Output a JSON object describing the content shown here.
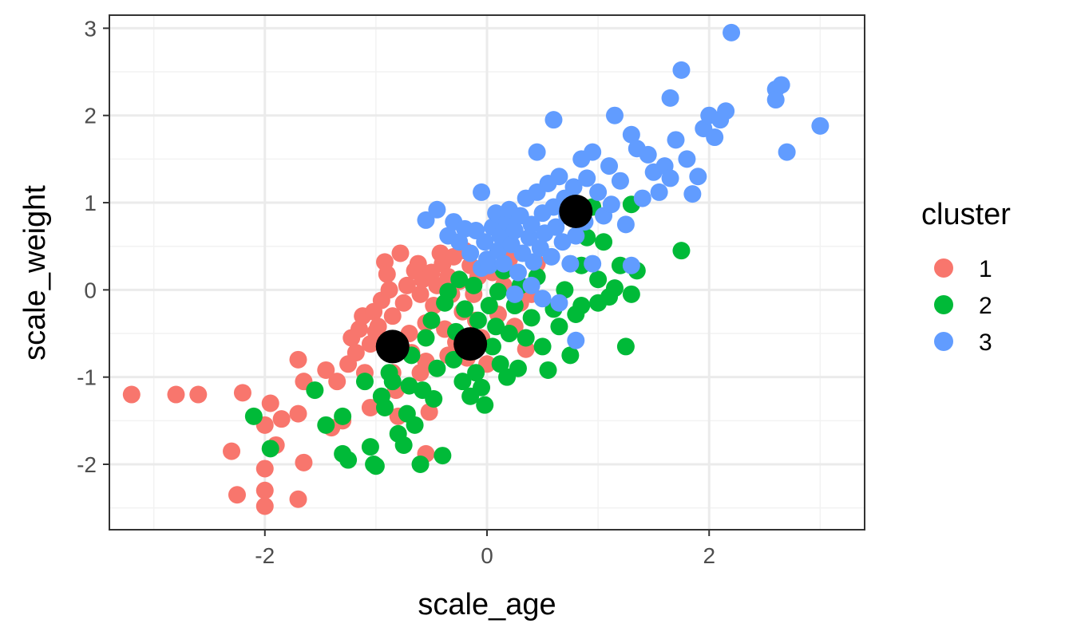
{
  "chart_data": {
    "type": "scatter",
    "xlabel": "scale_age",
    "ylabel": "scale_weight",
    "xlim": [
      -3.4,
      3.4
    ],
    "ylim": [
      -2.75,
      3.15
    ],
    "x_ticks": [
      -2,
      0,
      2
    ],
    "y_ticks": [
      -2,
      -1,
      0,
      1,
      2,
      3
    ],
    "x_tick_labels": [
      "-2",
      "0",
      "2"
    ],
    "y_tick_labels": [
      "-2",
      "-1",
      "0",
      "1",
      "2",
      "3"
    ],
    "grid": true,
    "theme": "bw",
    "legend": {
      "title": "cluster",
      "position": "right",
      "entries": [
        {
          "label": "1",
          "color": "#F8766D"
        },
        {
          "label": "2",
          "color": "#00BA38"
        },
        {
          "label": "3",
          "color": "#619CFF"
        }
      ]
    },
    "series": [
      {
        "name": "1",
        "color": "#F8766D",
        "points": [
          [
            -3.2,
            -1.2
          ],
          [
            -2.8,
            -1.2
          ],
          [
            -2.6,
            -1.2
          ],
          [
            -2.2,
            -1.18
          ],
          [
            -2.3,
            -1.85
          ],
          [
            -2.25,
            -2.35
          ],
          [
            -2.0,
            -2.05
          ],
          [
            -2.0,
            -2.3
          ],
          [
            -2.0,
            -2.48
          ],
          [
            -2.0,
            -1.55
          ],
          [
            -1.95,
            -1.3
          ],
          [
            -1.9,
            -1.78
          ],
          [
            -1.85,
            -1.48
          ],
          [
            -1.7,
            -1.42
          ],
          [
            -1.7,
            -0.8
          ],
          [
            -1.65,
            -1.05
          ],
          [
            -1.65,
            -1.98
          ],
          [
            -1.7,
            -2.4
          ],
          [
            -1.45,
            -0.92
          ],
          [
            -1.4,
            -1.58
          ],
          [
            -1.35,
            -1.05
          ],
          [
            -1.3,
            -1.5
          ],
          [
            -1.25,
            -0.85
          ],
          [
            -1.22,
            -0.55
          ],
          [
            -1.18,
            -0.72
          ],
          [
            -1.15,
            -0.45
          ],
          [
            -1.12,
            -0.3
          ],
          [
            -1.1,
            -0.95
          ],
          [
            -1.05,
            -0.62
          ],
          [
            -1.05,
            -1.35
          ],
          [
            -1.02,
            -0.25
          ],
          [
            -0.98,
            -0.42
          ],
          [
            -0.95,
            -0.12
          ],
          [
            -0.95,
            -0.58
          ],
          [
            -0.92,
            0.32
          ],
          [
            -0.9,
            0.18
          ],
          [
            -0.88,
            0.0
          ],
          [
            -0.85,
            -0.3
          ],
          [
            -0.85,
            -0.95
          ],
          [
            -0.82,
            -1.15
          ],
          [
            -0.8,
            -1.45
          ],
          [
            -0.78,
            0.42
          ],
          [
            -0.75,
            -0.15
          ],
          [
            -0.72,
            0.05
          ],
          [
            -0.7,
            -0.5
          ],
          [
            -0.68,
            -0.72
          ],
          [
            -0.65,
            0.22
          ],
          [
            -0.62,
            0.3
          ],
          [
            -0.6,
            -0.05
          ],
          [
            -0.58,
            0.12
          ],
          [
            -0.55,
            -0.38
          ],
          [
            -0.55,
            -0.82
          ],
          [
            -0.52,
            -1.4
          ],
          [
            -0.5,
            0.2
          ],
          [
            -0.48,
            -0.18
          ],
          [
            -0.45,
            0.05
          ],
          [
            -0.42,
            0.42
          ],
          [
            -0.4,
            0.3
          ],
          [
            -0.38,
            -0.45
          ],
          [
            -0.35,
            0.15
          ],
          [
            -0.32,
            -0.05
          ],
          [
            -0.3,
            0.38
          ],
          [
            -0.28,
            -0.6
          ],
          [
            -0.25,
            0.1
          ],
          [
            -0.22,
            -0.25
          ],
          [
            -0.2,
            0.45
          ],
          [
            -0.18,
            -0.78
          ],
          [
            -0.15,
            0.28
          ],
          [
            -0.12,
            -0.05
          ],
          [
            -0.1,
            -0.35
          ],
          [
            -0.08,
            0.15
          ],
          [
            -0.05,
            -0.55
          ],
          [
            0.0,
            -0.85
          ],
          [
            0.05,
            0.2
          ],
          [
            0.1,
            -0.28
          ],
          [
            0.15,
            0.05
          ],
          [
            0.2,
            0.35
          ],
          [
            0.25,
            -0.42
          ],
          [
            0.3,
            -0.15
          ],
          [
            0.35,
            -0.68
          ],
          [
            0.4,
            -0.05
          ],
          [
            0.45,
            0.3
          ],
          [
            -0.55,
            -1.88
          ],
          [
            -1.0,
            -0.48
          ],
          [
            -0.6,
            -0.95
          ],
          [
            -0.35,
            -0.75
          ]
        ]
      },
      {
        "name": "2",
        "color": "#00BA38",
        "points": [
          [
            -2.1,
            -1.45
          ],
          [
            -1.95,
            -1.82
          ],
          [
            -1.55,
            -1.15
          ],
          [
            -1.45,
            -1.55
          ],
          [
            -1.3,
            -1.45
          ],
          [
            -1.3,
            -1.88
          ],
          [
            -1.25,
            -1.95
          ],
          [
            -1.1,
            -1.05
          ],
          [
            -1.05,
            -1.8
          ],
          [
            -1.02,
            -2.0
          ],
          [
            -1.0,
            -2.02
          ],
          [
            -0.95,
            -1.22
          ],
          [
            -0.92,
            -1.35
          ],
          [
            -0.88,
            -0.95
          ],
          [
            -0.85,
            -1.05
          ],
          [
            -0.8,
            -1.65
          ],
          [
            -0.75,
            -1.78
          ],
          [
            -0.72,
            -1.42
          ],
          [
            -0.7,
            -1.1
          ],
          [
            -0.68,
            -0.75
          ],
          [
            -0.65,
            -1.55
          ],
          [
            -0.6,
            -2.0
          ],
          [
            -0.58,
            -1.15
          ],
          [
            -0.55,
            -0.55
          ],
          [
            -0.5,
            -0.35
          ],
          [
            -0.48,
            -1.25
          ],
          [
            -0.45,
            -0.9
          ],
          [
            -0.4,
            -1.9
          ],
          [
            -0.38,
            -0.15
          ],
          [
            -0.35,
            -0.02
          ],
          [
            -0.3,
            -0.8
          ],
          [
            -0.28,
            -0.48
          ],
          [
            -0.25,
            0.12
          ],
          [
            -0.22,
            -1.05
          ],
          [
            -0.2,
            -0.22
          ],
          [
            -0.18,
            -0.55
          ],
          [
            -0.15,
            -1.22
          ],
          [
            -0.12,
            0.05
          ],
          [
            -0.1,
            -0.95
          ],
          [
            -0.08,
            -0.35
          ],
          [
            -0.05,
            -1.12
          ],
          [
            -0.02,
            -1.32
          ],
          [
            0.02,
            -0.18
          ],
          [
            0.05,
            -0.65
          ],
          [
            0.08,
            -0.42
          ],
          [
            0.1,
            -0.02
          ],
          [
            0.12,
            -0.85
          ],
          [
            0.15,
            0.22
          ],
          [
            0.18,
            -1.0
          ],
          [
            0.2,
            -0.5
          ],
          [
            0.25,
            -0.18
          ],
          [
            0.28,
            -0.9
          ],
          [
            0.3,
            0.05
          ],
          [
            0.35,
            -0.55
          ],
          [
            0.4,
            -0.32
          ],
          [
            0.45,
            0.15
          ],
          [
            0.5,
            -0.65
          ],
          [
            0.55,
            -0.92
          ],
          [
            0.6,
            -0.22
          ],
          [
            0.65,
            -0.42
          ],
          [
            0.7,
            0.0
          ],
          [
            0.75,
            -0.75
          ],
          [
            0.8,
            -0.28
          ],
          [
            0.85,
            0.28
          ],
          [
            0.9,
            0.6
          ],
          [
            0.95,
            0.95
          ],
          [
            1.0,
            0.12
          ],
          [
            1.05,
            0.55
          ],
          [
            1.1,
            -0.08
          ],
          [
            1.15,
            0.02
          ],
          [
            1.2,
            0.28
          ],
          [
            1.25,
            -0.65
          ],
          [
            1.3,
            -0.05
          ],
          [
            1.3,
            0.98
          ],
          [
            1.35,
            0.22
          ],
          [
            1.75,
            0.45
          ],
          [
            0.85,
            -0.18
          ],
          [
            1.0,
            -0.15
          ]
        ]
      },
      {
        "name": "3",
        "color": "#619CFF",
        "points": [
          [
            -0.55,
            0.8
          ],
          [
            -0.45,
            0.92
          ],
          [
            -0.35,
            0.62
          ],
          [
            -0.3,
            0.78
          ],
          [
            -0.25,
            0.55
          ],
          [
            -0.2,
            0.7
          ],
          [
            -0.15,
            0.42
          ],
          [
            -0.1,
            0.68
          ],
          [
            -0.05,
            0.25
          ],
          [
            -0.02,
            0.55
          ],
          [
            0.0,
            0.35
          ],
          [
            0.02,
            0.28
          ],
          [
            0.05,
            0.72
          ],
          [
            0.08,
            0.88
          ],
          [
            0.1,
            0.45
          ],
          [
            0.12,
            0.62
          ],
          [
            0.15,
            0.3
          ],
          [
            0.18,
            0.78
          ],
          [
            0.2,
            0.92
          ],
          [
            0.22,
            0.52
          ],
          [
            0.25,
            0.68
          ],
          [
            0.28,
            0.2
          ],
          [
            0.3,
            0.85
          ],
          [
            0.32,
            0.42
          ],
          [
            0.35,
            1.05
          ],
          [
            0.38,
            0.6
          ],
          [
            0.4,
            0.75
          ],
          [
            0.42,
            0.32
          ],
          [
            0.45,
            1.12
          ],
          [
            0.48,
            0.48
          ],
          [
            0.5,
            0.88
          ],
          [
            0.52,
            0.65
          ],
          [
            0.55,
            1.22
          ],
          [
            0.58,
            0.38
          ],
          [
            0.6,
            0.95
          ],
          [
            0.62,
            0.72
          ],
          [
            0.65,
            1.3
          ],
          [
            0.68,
            0.55
          ],
          [
            0.7,
            1.05
          ],
          [
            0.72,
            0.85
          ],
          [
            0.75,
            0.3
          ],
          [
            0.78,
            1.18
          ],
          [
            0.8,
            0.62
          ],
          [
            0.82,
            0.95
          ],
          [
            0.85,
            1.5
          ],
          [
            0.88,
            0.78
          ],
          [
            0.9,
            1.28
          ],
          [
            0.95,
            1.58
          ],
          [
            1.0,
            1.12
          ],
          [
            1.05,
            0.85
          ],
          [
            1.1,
            1.42
          ],
          [
            1.12,
            0.98
          ],
          [
            1.15,
            2.0
          ],
          [
            1.2,
            1.25
          ],
          [
            1.25,
            0.75
          ],
          [
            1.3,
            1.78
          ],
          [
            1.35,
            1.62
          ],
          [
            1.4,
            1.05
          ],
          [
            1.45,
            1.55
          ],
          [
            1.5,
            1.35
          ],
          [
            1.55,
            1.12
          ],
          [
            1.6,
            1.42
          ],
          [
            1.65,
            1.28
          ],
          [
            1.7,
            1.72
          ],
          [
            1.75,
            2.52
          ],
          [
            1.8,
            1.5
          ],
          [
            1.85,
            1.1
          ],
          [
            1.9,
            1.3
          ],
          [
            1.95,
            1.85
          ],
          [
            2.0,
            2.0
          ],
          [
            2.05,
            1.75
          ],
          [
            2.1,
            1.95
          ],
          [
            2.15,
            2.05
          ],
          [
            2.2,
            2.95
          ],
          [
            2.6,
            2.3
          ],
          [
            2.6,
            2.18
          ],
          [
            2.65,
            2.35
          ],
          [
            2.7,
            1.58
          ],
          [
            3.0,
            1.88
          ],
          [
            0.6,
            1.95
          ],
          [
            0.45,
            1.58
          ],
          [
            -0.05,
            1.12
          ],
          [
            0.5,
            -0.1
          ],
          [
            0.65,
            -0.15
          ],
          [
            0.8,
            -0.58
          ],
          [
            1.3,
            0.28
          ],
          [
            0.95,
            0.3
          ],
          [
            1.65,
            2.2
          ],
          [
            0.25,
            -0.05
          ],
          [
            0.4,
            0.05
          ]
        ]
      }
    ],
    "centroids": {
      "color": "#000000",
      "points": [
        [
          -0.85,
          -0.65
        ],
        [
          -0.15,
          -0.62
        ],
        [
          0.8,
          0.9
        ]
      ]
    }
  }
}
